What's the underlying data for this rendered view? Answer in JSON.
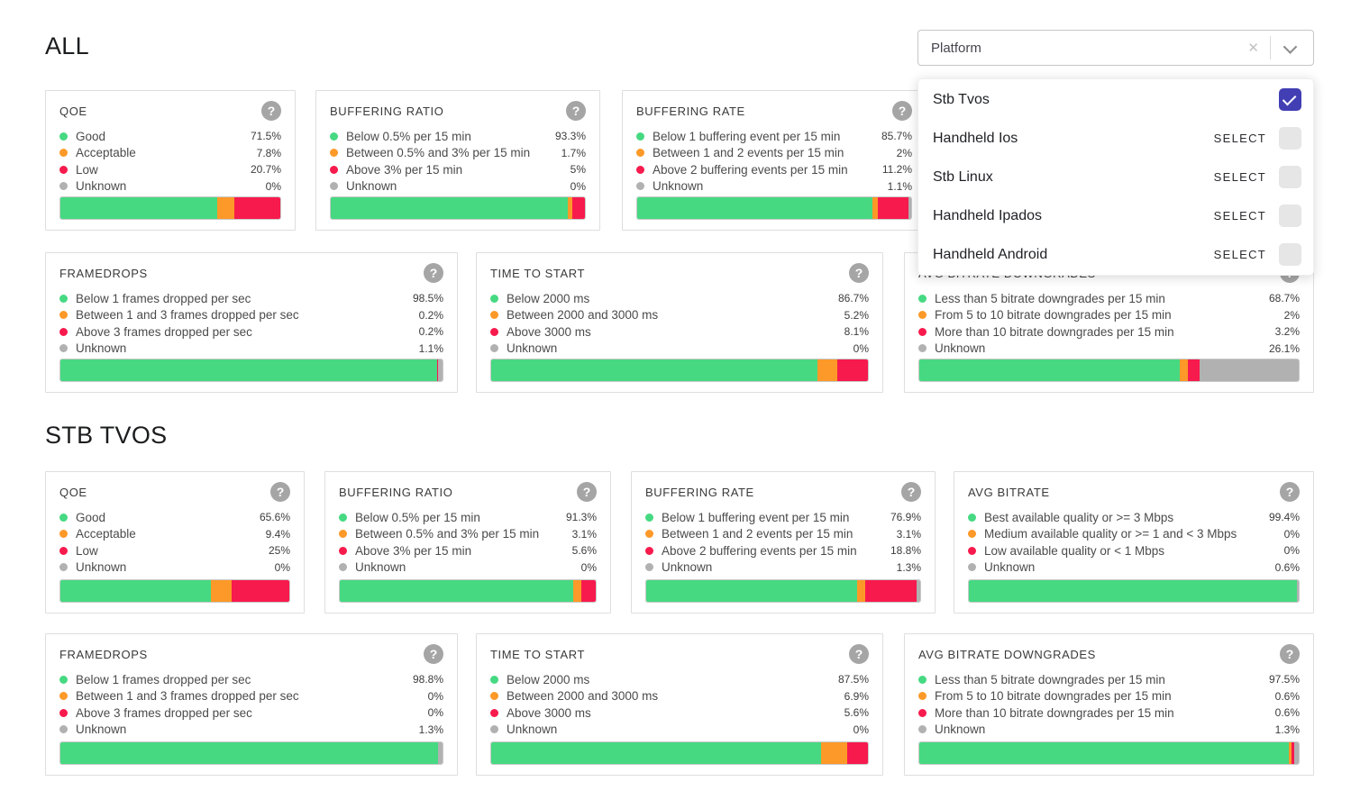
{
  "colors": {
    "good": "#46d982",
    "acceptable": "#fd9928",
    "low": "#f71a4d",
    "unknown": "#b1b1b1",
    "checkbox_checked": "#423fb4"
  },
  "icons": {
    "help": "?",
    "clear": "✕"
  },
  "filter": {
    "value": "Platform",
    "options": [
      {
        "label": "Stb Tvos",
        "checked": true,
        "action": ""
      },
      {
        "label": "Handheld Ios",
        "checked": false,
        "action": "SELECT"
      },
      {
        "label": "Stb Linux",
        "checked": false,
        "action": "SELECT"
      },
      {
        "label": "Handheld Ipados",
        "checked": false,
        "action": "SELECT"
      },
      {
        "label": "Handheld Android",
        "checked": false,
        "action": "SELECT"
      }
    ]
  },
  "sections": [
    {
      "title": "ALL",
      "rows": [
        [
          {
            "title": "QOE",
            "metrics": [
              {
                "label": "Good",
                "value": "71.5%",
                "pct": 71.5,
                "status": "good"
              },
              {
                "label": "Acceptable",
                "value": "7.8%",
                "pct": 7.8,
                "status": "acceptable"
              },
              {
                "label": "Low",
                "value": "20.7%",
                "pct": 20.7,
                "status": "low"
              },
              {
                "label": "Unknown",
                "value": "0%",
                "pct": 0,
                "status": "unknown"
              }
            ]
          },
          {
            "title": "BUFFERING RATIO",
            "metrics": [
              {
                "label": "Below 0.5% per 15 min",
                "value": "93.3%",
                "pct": 93.3,
                "status": "good"
              },
              {
                "label": "Between 0.5% and 3% per 15 min",
                "value": "1.7%",
                "pct": 1.7,
                "status": "acceptable"
              },
              {
                "label": "Above 3% per 15 min",
                "value": "5%",
                "pct": 5,
                "status": "low"
              },
              {
                "label": "Unknown",
                "value": "0%",
                "pct": 0,
                "status": "unknown"
              }
            ]
          },
          {
            "title": "BUFFERING RATE",
            "metrics": [
              {
                "label": "Below 1 buffering event per 15 min",
                "value": "85.7%",
                "pct": 85.7,
                "status": "good"
              },
              {
                "label": "Between 1 and 2 events per 15 min",
                "value": "2%",
                "pct": 2,
                "status": "acceptable"
              },
              {
                "label": "Above 2 buffering events per 15 min",
                "value": "11.2%",
                "pct": 11.2,
                "status": "low"
              },
              {
                "label": "Unknown",
                "value": "1.1%",
                "pct": 1.1,
                "status": "unknown"
              }
            ]
          }
        ],
        [
          {
            "title": "FRAMEDROPS",
            "metrics": [
              {
                "label": "Below 1 frames dropped per sec",
                "value": "98.5%",
                "pct": 98.5,
                "status": "good"
              },
              {
                "label": "Between 1 and 3 frames dropped per sec",
                "value": "0.2%",
                "pct": 0.2,
                "status": "acceptable"
              },
              {
                "label": "Above 3 frames dropped per sec",
                "value": "0.2%",
                "pct": 0.2,
                "status": "low"
              },
              {
                "label": "Unknown",
                "value": "1.1%",
                "pct": 1.1,
                "status": "unknown"
              }
            ]
          },
          {
            "title": "TIME TO START",
            "metrics": [
              {
                "label": "Below 2000 ms",
                "value": "86.7%",
                "pct": 86.7,
                "status": "good"
              },
              {
                "label": "Between 2000 and 3000 ms",
                "value": "5.2%",
                "pct": 5.2,
                "status": "acceptable"
              },
              {
                "label": "Above 3000 ms",
                "value": "8.1%",
                "pct": 8.1,
                "status": "low"
              },
              {
                "label": "Unknown",
                "value": "0%",
                "pct": 0,
                "status": "unknown"
              }
            ]
          },
          {
            "title": "AVG BITRATE DOWNGRADES",
            "metrics": [
              {
                "label": "Less than 5 bitrate downgrades per 15 min",
                "value": "68.7%",
                "pct": 68.7,
                "status": "good"
              },
              {
                "label": "From 5 to 10 bitrate downgrades per 15 min",
                "value": "2%",
                "pct": 2,
                "status": "acceptable"
              },
              {
                "label": "More than 10 bitrate downgrades per 15 min",
                "value": "3.2%",
                "pct": 3.2,
                "status": "low"
              },
              {
                "label": "Unknown",
                "value": "26.1%",
                "pct": 26.1,
                "status": "unknown"
              }
            ]
          }
        ]
      ]
    },
    {
      "title": "STB TVOS",
      "rows": [
        [
          {
            "title": "QOE",
            "metrics": [
              {
                "label": "Good",
                "value": "65.6%",
                "pct": 65.6,
                "status": "good"
              },
              {
                "label": "Acceptable",
                "value": "9.4%",
                "pct": 9.4,
                "status": "acceptable"
              },
              {
                "label": "Low",
                "value": "25%",
                "pct": 25,
                "status": "low"
              },
              {
                "label": "Unknown",
                "value": "0%",
                "pct": 0,
                "status": "unknown"
              }
            ]
          },
          {
            "title": "BUFFERING RATIO",
            "metrics": [
              {
                "label": "Below 0.5% per 15 min",
                "value": "91.3%",
                "pct": 91.3,
                "status": "good"
              },
              {
                "label": "Between 0.5% and 3% per 15 min",
                "value": "3.1%",
                "pct": 3.1,
                "status": "acceptable"
              },
              {
                "label": "Above 3% per 15 min",
                "value": "5.6%",
                "pct": 5.6,
                "status": "low"
              },
              {
                "label": "Unknown",
                "value": "0%",
                "pct": 0,
                "status": "unknown"
              }
            ]
          },
          {
            "title": "BUFFERING RATE",
            "metrics": [
              {
                "label": "Below 1 buffering event per 15 min",
                "value": "76.9%",
                "pct": 76.9,
                "status": "good"
              },
              {
                "label": "Between 1 and 2 events per 15 min",
                "value": "3.1%",
                "pct": 3.1,
                "status": "acceptable"
              },
              {
                "label": "Above 2 buffering events per 15 min",
                "value": "18.8%",
                "pct": 18.8,
                "status": "low"
              },
              {
                "label": "Unknown",
                "value": "1.3%",
                "pct": 1.3,
                "status": "unknown"
              }
            ]
          },
          {
            "title": "AVG BITRATE",
            "metrics": [
              {
                "label": "Best available quality or >= 3 Mbps",
                "value": "99.4%",
                "pct": 99.4,
                "status": "good"
              },
              {
                "label": "Medium available quality or >= 1 and < 3 Mbps",
                "value": "0%",
                "pct": 0,
                "status": "acceptable"
              },
              {
                "label": "Low available quality or < 1 Mbps",
                "value": "0%",
                "pct": 0,
                "status": "low"
              },
              {
                "label": "Unknown",
                "value": "0.6%",
                "pct": 0.6,
                "status": "unknown"
              }
            ]
          }
        ],
        [
          {
            "title": "FRAMEDROPS",
            "metrics": [
              {
                "label": "Below 1 frames dropped per sec",
                "value": "98.8%",
                "pct": 98.8,
                "status": "good"
              },
              {
                "label": "Between 1 and 3 frames dropped per sec",
                "value": "0%",
                "pct": 0,
                "status": "acceptable"
              },
              {
                "label": "Above 3 frames dropped per sec",
                "value": "0%",
                "pct": 0,
                "status": "low"
              },
              {
                "label": "Unknown",
                "value": "1.3%",
                "pct": 1.3,
                "status": "unknown"
              }
            ]
          },
          {
            "title": "TIME TO START",
            "metrics": [
              {
                "label": "Below 2000 ms",
                "value": "87.5%",
                "pct": 87.5,
                "status": "good"
              },
              {
                "label": "Between 2000 and 3000 ms",
                "value": "6.9%",
                "pct": 6.9,
                "status": "acceptable"
              },
              {
                "label": "Above 3000 ms",
                "value": "5.6%",
                "pct": 5.6,
                "status": "low"
              },
              {
                "label": "Unknown",
                "value": "0%",
                "pct": 0,
                "status": "unknown"
              }
            ]
          },
          {
            "title": "AVG BITRATE DOWNGRADES",
            "metrics": [
              {
                "label": "Less than 5 bitrate downgrades per 15 min",
                "value": "97.5%",
                "pct": 97.5,
                "status": "good"
              },
              {
                "label": "From 5 to 10 bitrate downgrades per 15 min",
                "value": "0.6%",
                "pct": 0.6,
                "status": "acceptable"
              },
              {
                "label": "More than 10 bitrate downgrades per 15 min",
                "value": "0.6%",
                "pct": 0.6,
                "status": "low"
              },
              {
                "label": "Unknown",
                "value": "1.3%",
                "pct": 1.3,
                "status": "unknown"
              }
            ]
          }
        ]
      ]
    }
  ]
}
